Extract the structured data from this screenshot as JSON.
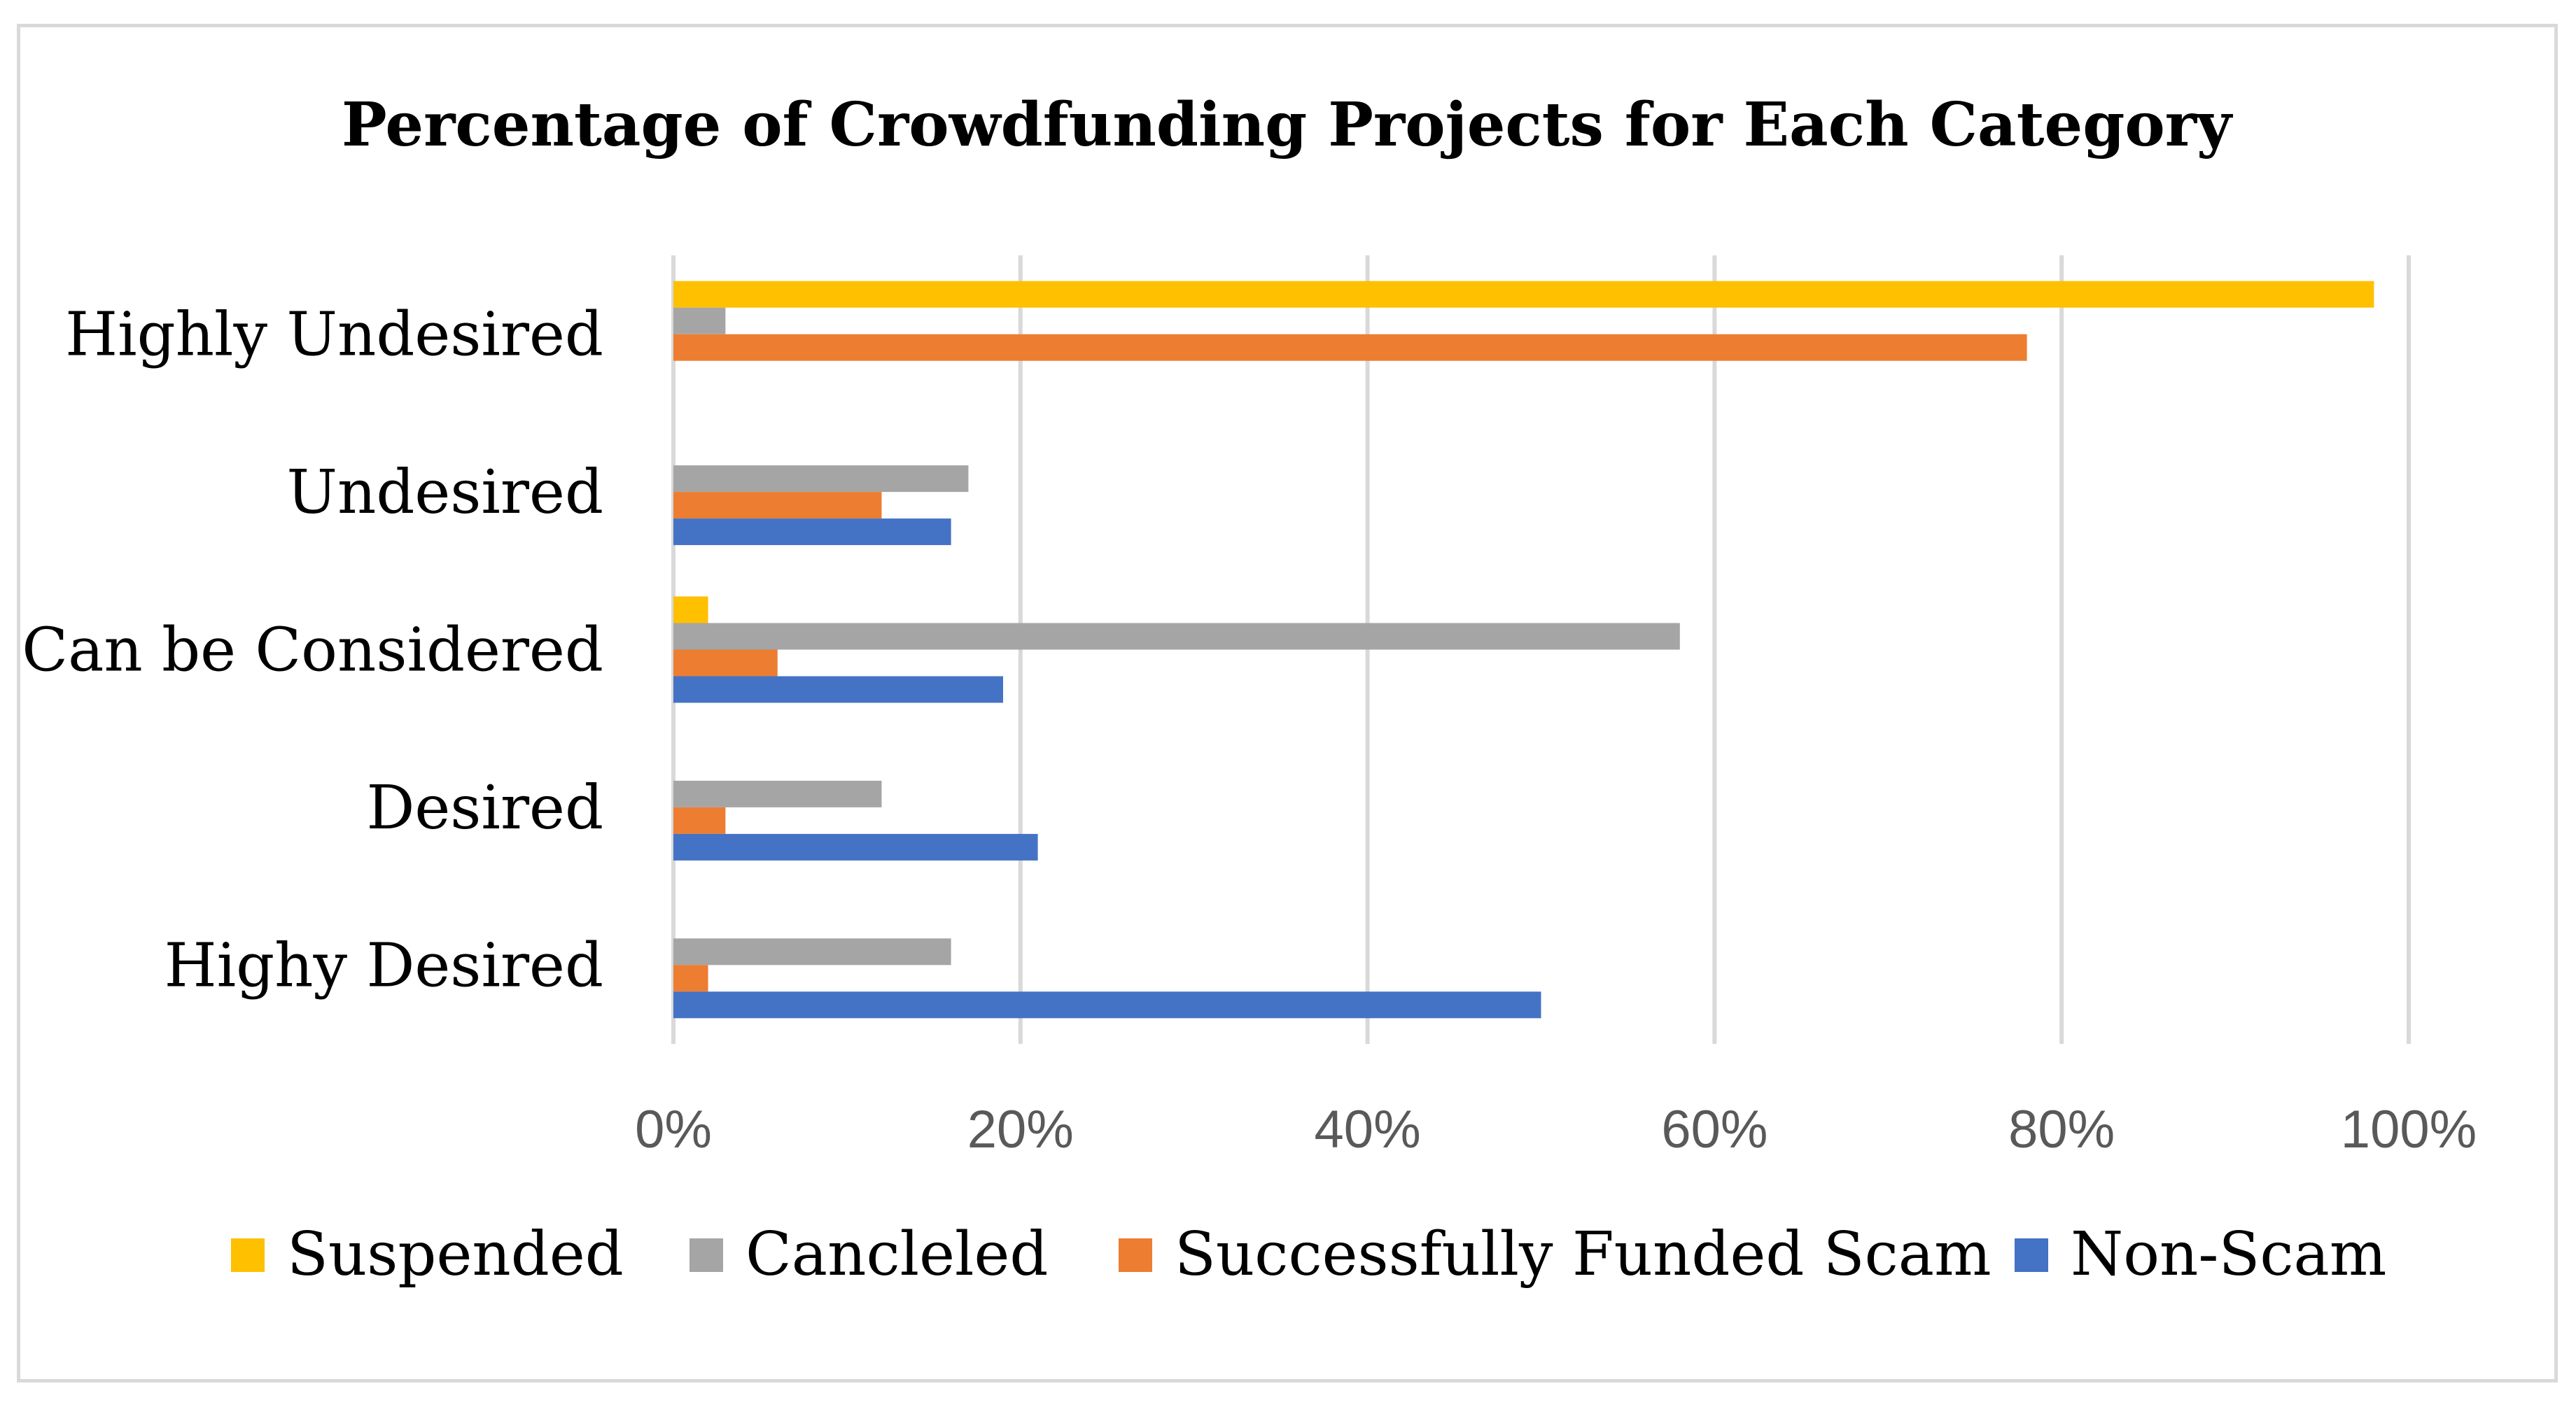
{
  "chart_data": {
    "type": "bar",
    "orientation": "horizontal",
    "title": "Percentage of Crowdfunding Projects for Each Category",
    "categories": [
      "Highly Undesired",
      "Undesired",
      "Can be Considered",
      "Desired",
      "Highy Desired"
    ],
    "series": [
      {
        "name": "Suspended",
        "color": "#ffc000",
        "values": [
          98,
          0,
          2,
          0,
          0
        ]
      },
      {
        "name": "Cancleled",
        "color": "#a5a5a5",
        "values": [
          3,
          17,
          58,
          12,
          16
        ]
      },
      {
        "name": "Successfully Funded Scam",
        "color": "#ed7d31",
        "values": [
          78,
          12,
          6,
          3,
          2
        ]
      },
      {
        "name": "Non-Scam",
        "color": "#4472c4",
        "values": [
          0,
          16,
          19,
          21,
          50
        ]
      }
    ],
    "xlim": [
      0,
      100
    ],
    "xticks": [
      0,
      20,
      40,
      60,
      80,
      100
    ],
    "xtick_labels": [
      "0%",
      "20%",
      "40%",
      "60%",
      "80%",
      "100%"
    ],
    "xlabel": "",
    "ylabel": "",
    "grid": "vertical",
    "legend_position": "bottom"
  }
}
